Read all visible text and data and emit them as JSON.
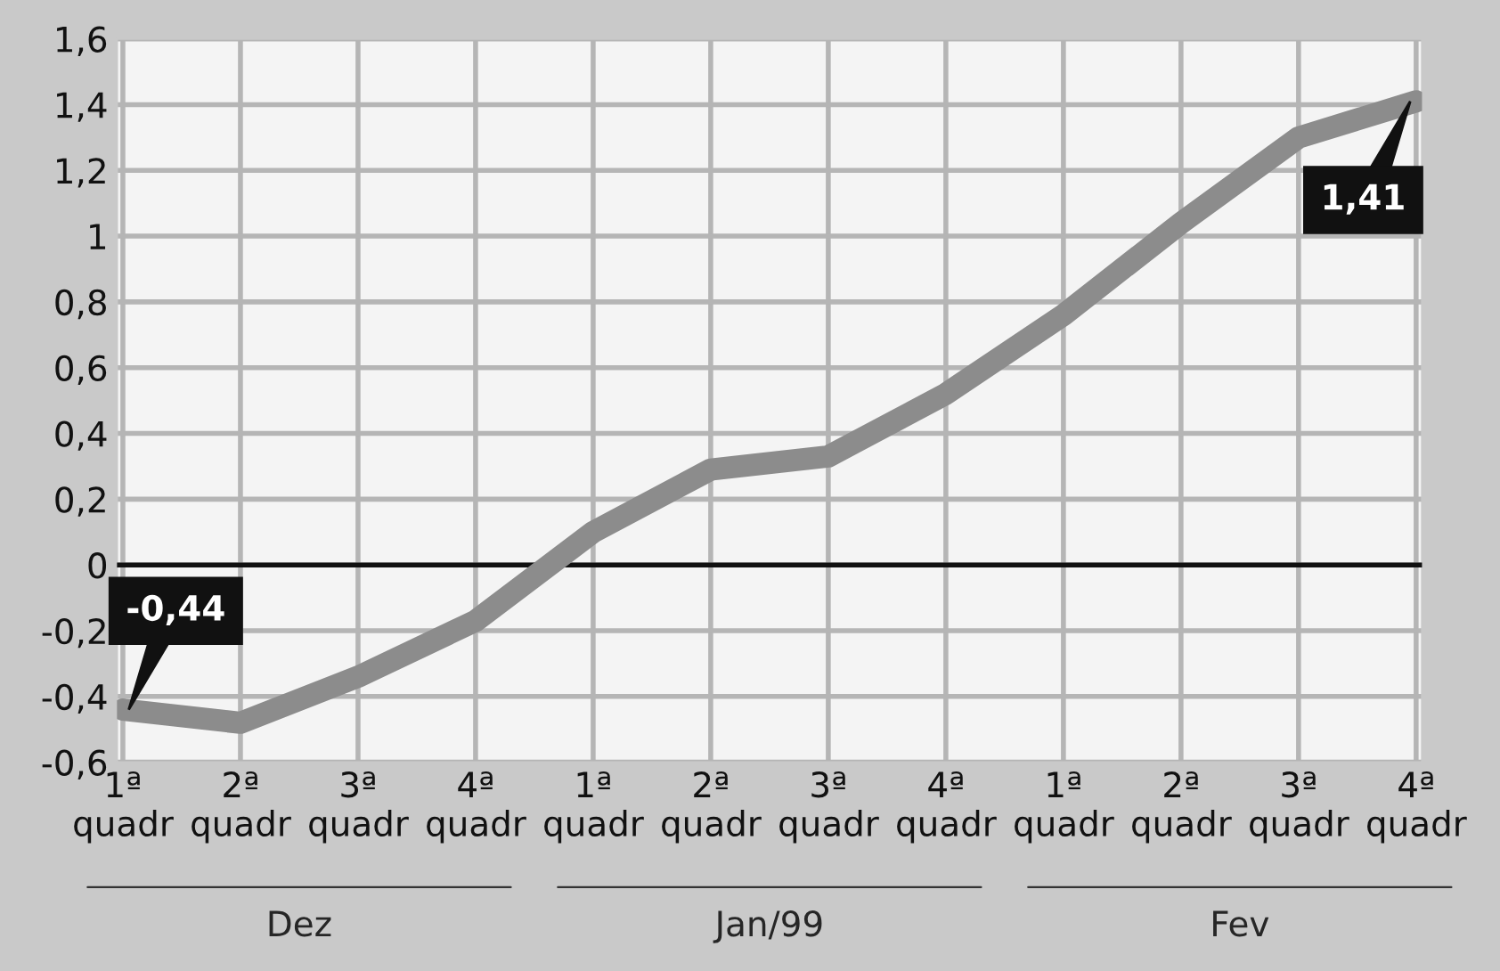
{
  "chart_data": {
    "type": "line",
    "categories": [
      "1ª\nquadr",
      "2ª\nquadr",
      "3ª\nquadr",
      "4ª\nquadr",
      "1ª\nquadr",
      "2ª\nquadr",
      "3ª\nquadr",
      "4ª\nquadr",
      "1ª\nquadr",
      "2ª\nquadr",
      "3ª\nquadr",
      "4ª\nquadr"
    ],
    "series": [
      {
        "color": "#8c8c8c",
        "values": [
          -0.44,
          -0.48,
          -0.34,
          -0.17,
          0.1,
          0.29,
          0.33,
          0.52,
          0.76,
          1.04,
          1.3,
          1.41
        ],
        "value_labels": [
          "-0,44",
          null,
          null,
          null,
          null,
          null,
          null,
          null,
          null,
          null,
          null,
          "1,41"
        ]
      }
    ],
    "ylim": [
      -0.6,
      1.6
    ],
    "yticks": [
      {
        "value": -0.6,
        "label": "-0,6"
      },
      {
        "value": -0.4,
        "label": "-0,4"
      },
      {
        "value": -0.2,
        "label": "-0,2"
      },
      0,
      {
        "value": 0.2,
        "label": "0,2"
      },
      {
        "value": 0.4,
        "label": "0,4"
      },
      {
        "value": 0.6,
        "label": "0,6"
      },
      {
        "value": 0.8,
        "label": "0,8"
      },
      1,
      {
        "value": 1.2,
        "label": "1,2"
      },
      {
        "value": 1.4,
        "label": "1,4"
      },
      {
        "value": 1.6,
        "label": "1,6"
      }
    ],
    "ref_lines": [
      {
        "axis": "y",
        "value": 0,
        "color": "#111111"
      }
    ],
    "annotations": [
      "Dez",
      "Jan/99",
      "Fev"
    ],
    "grid": true,
    "legend": false,
    "marker": "none",
    "line_style": "solid"
  }
}
